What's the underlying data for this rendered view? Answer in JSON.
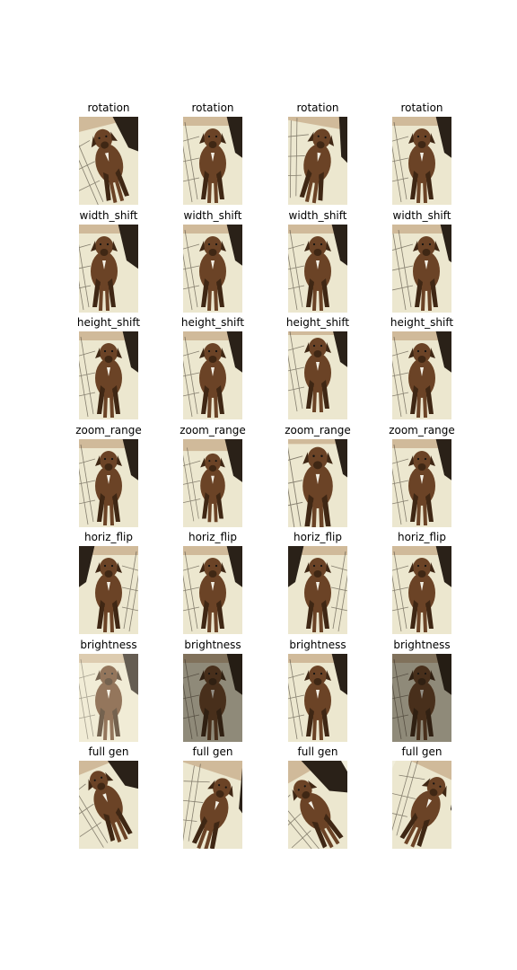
{
  "figure": {
    "rows": [
      {
        "title": "rotation",
        "tiles": [
          {
            "variant": "rot-left"
          },
          {
            "variant": "plain"
          },
          {
            "variant": "rot-right"
          },
          {
            "variant": "plain"
          }
        ]
      },
      {
        "title": "width_shift",
        "tiles": [
          {
            "variant": "shift-left"
          },
          {
            "variant": "plain"
          },
          {
            "variant": "plain"
          },
          {
            "variant": "shift-right"
          }
        ]
      },
      {
        "title": "height_shift",
        "tiles": [
          {
            "variant": "plain"
          },
          {
            "variant": "plain"
          },
          {
            "variant": "shift-up"
          },
          {
            "variant": "plain"
          }
        ]
      },
      {
        "title": "zoom_range",
        "tiles": [
          {
            "variant": "plain"
          },
          {
            "variant": "zoom-out"
          },
          {
            "variant": "zoom-in"
          },
          {
            "variant": "plain"
          }
        ]
      },
      {
        "title": "horiz_flip",
        "tiles": [
          {
            "variant": "flip"
          },
          {
            "variant": "plain"
          },
          {
            "variant": "flip"
          },
          {
            "variant": "plain"
          }
        ]
      },
      {
        "title": "brightness",
        "tiles": [
          {
            "variant": "bright"
          },
          {
            "variant": "dark"
          },
          {
            "variant": "plain"
          },
          {
            "variant": "dark"
          }
        ]
      },
      {
        "title": "full gen",
        "tiles": [
          {
            "variant": "full-1"
          },
          {
            "variant": "full-2"
          },
          {
            "variant": "full-3"
          },
          {
            "variant": "full-4"
          }
        ]
      }
    ]
  },
  "colors": {
    "fur": "#6b4326",
    "fur_dark": "#3f2714",
    "floor": "#ece7cf",
    "cage": "#5a5346",
    "shadow": "#2a2118",
    "wall": "#b9956f"
  }
}
